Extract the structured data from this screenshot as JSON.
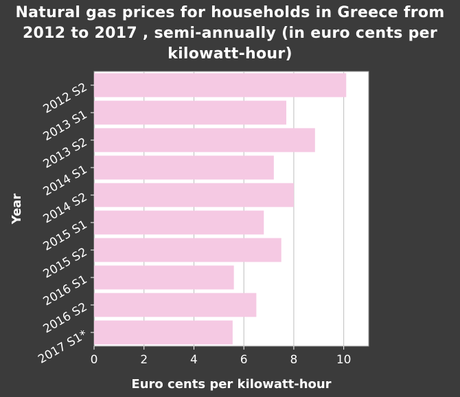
{
  "chart_data": {
    "type": "bar",
    "orientation": "horizontal",
    "title": "Natural gas prices for households in Greece from 2012 to 2017 , semi-annually (in euro cents per kilowatt-hour)",
    "xlabel": "Euro cents per kilowatt-hour",
    "ylabel": "Year",
    "categories": [
      "2012 S2",
      "2013 S1",
      "2013 S2",
      "2014 S1",
      "2014 S2",
      "2015 S1",
      "2015 S2",
      "2016 S1",
      "2016 S2",
      "2017 S1*"
    ],
    "values": [
      10.1,
      7.7,
      8.85,
      7.2,
      8.0,
      6.8,
      7.5,
      5.6,
      6.5,
      5.55
    ],
    "xlim": [
      0,
      11
    ],
    "xticks": [
      0,
      2,
      4,
      6,
      8,
      10
    ],
    "grid": true,
    "colors": {
      "background": "#3b3b3b",
      "plot_area": "#ffffff",
      "bar_fill": "#f5c9e3",
      "gridline": "#bdbdbd",
      "text": "#ffffff"
    }
  }
}
